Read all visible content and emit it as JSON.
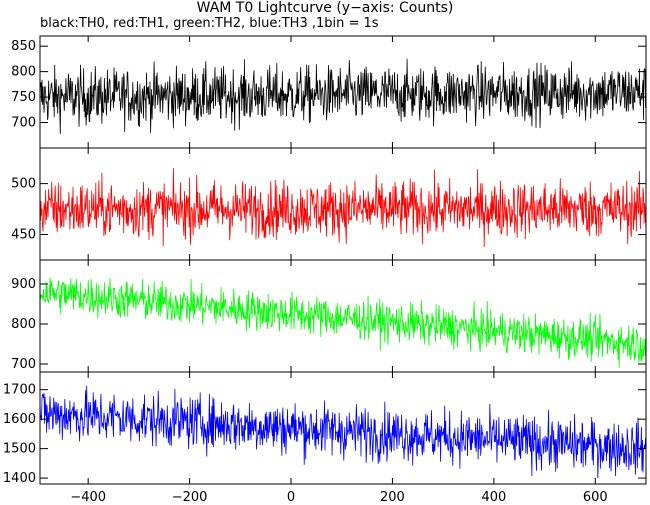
{
  "chart_data": {
    "type": "line",
    "title": "WAM T0 Lightcurve (y−axis: Counts)",
    "subtitle": "black:TH0, red:TH1, green:TH2, blue:TH3 ,1bin = 1s",
    "xlim": [
      -495,
      700
    ],
    "x_ticks": [
      -400,
      -200,
      0,
      200,
      400,
      600
    ],
    "x_tick_labels": [
      "−400",
      "−200",
      "0",
      "200",
      "400",
      "600"
    ],
    "panels": [
      {
        "name": "TH0",
        "color": "#000000",
        "ylim": [
          650,
          870
        ],
        "y_ticks": [
          700,
          750,
          800,
          850
        ],
        "y_tick_labels": [
          "700",
          "750",
          "800",
          "850"
        ],
        "trend_start": 750,
        "trend_end": 760,
        "noise": 28
      },
      {
        "name": "TH1",
        "color": "#ff0000",
        "ylim": [
          425,
          535
        ],
        "y_ticks": [
          450,
          500
        ],
        "y_tick_labels": [
          "450",
          "500"
        ],
        "trend_start": 475,
        "trend_end": 475,
        "noise": 14
      },
      {
        "name": "TH2",
        "color": "#00ff00",
        "ylim": [
          680,
          960
        ],
        "y_ticks": [
          700,
          800,
          900
        ],
        "y_tick_labels": [
          "700",
          "800",
          "900"
        ],
        "trend_start": 880,
        "trend_end": 750,
        "noise": 25
      },
      {
        "name": "TH3",
        "color": "#0000ff",
        "ylim": [
          1380,
          1760
        ],
        "y_ticks": [
          1400,
          1500,
          1600,
          1700
        ],
        "y_tick_labels": [
          "1400",
          "1500",
          "1600",
          "1700"
        ],
        "trend_start": 1620,
        "trend_end": 1500,
        "noise": 45
      }
    ]
  }
}
